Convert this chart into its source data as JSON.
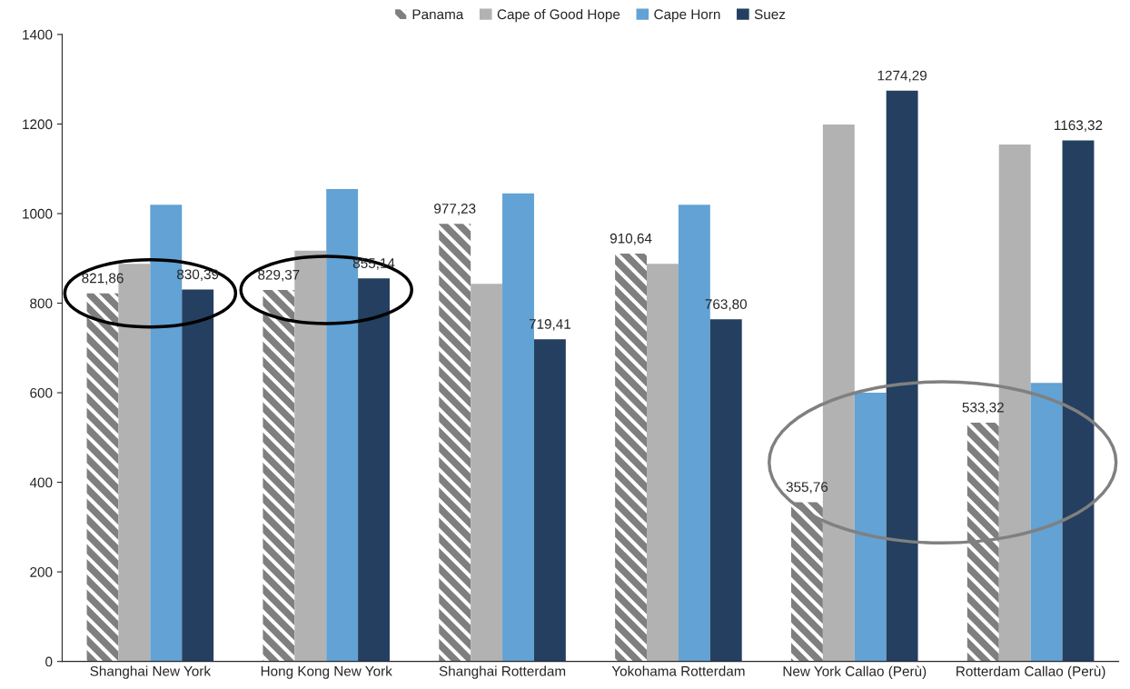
{
  "chart_data": {
    "type": "bar",
    "categories": [
      "Shanghai New York",
      "Hong Kong New York",
      "Shanghai Rotterdam",
      "Yokohama Rotterdam",
      "New York Callao (Perù)",
      "Rotterdam Callao (Perù)"
    ],
    "series": [
      {
        "name": "Panama",
        "color": "#7f7f7f",
        "values": [
          821.86,
          829.37,
          977.23,
          910.64,
          355.76,
          533.32
        ],
        "value_labels": [
          "821,86",
          "829,37",
          "977,23",
          "910,64",
          "355,76",
          "533,32"
        ]
      },
      {
        "name": "Cape of Good Hope",
        "color": "#b2b2b2",
        "values": [
          888,
          917,
          843,
          888,
          1199,
          1154
        ]
      },
      {
        "name": "Cape Horn",
        "color": "#62a2d4",
        "values": [
          1020,
          1055,
          1045,
          1020,
          600,
          622
        ]
      },
      {
        "name": "Suez",
        "color": "#243f60",
        "values": [
          830.39,
          855.14,
          719.41,
          763.8,
          1274.29,
          1163.32
        ],
        "value_labels": [
          "830,39",
          "855,14",
          "719,41",
          "763,80",
          "1274,29",
          "1163,32"
        ]
      }
    ],
    "ylim": [
      0,
      1400
    ],
    "yticks": [
      0,
      200,
      400,
      600,
      800,
      1000,
      1200,
      1400
    ],
    "grid": false,
    "legend": "top"
  }
}
